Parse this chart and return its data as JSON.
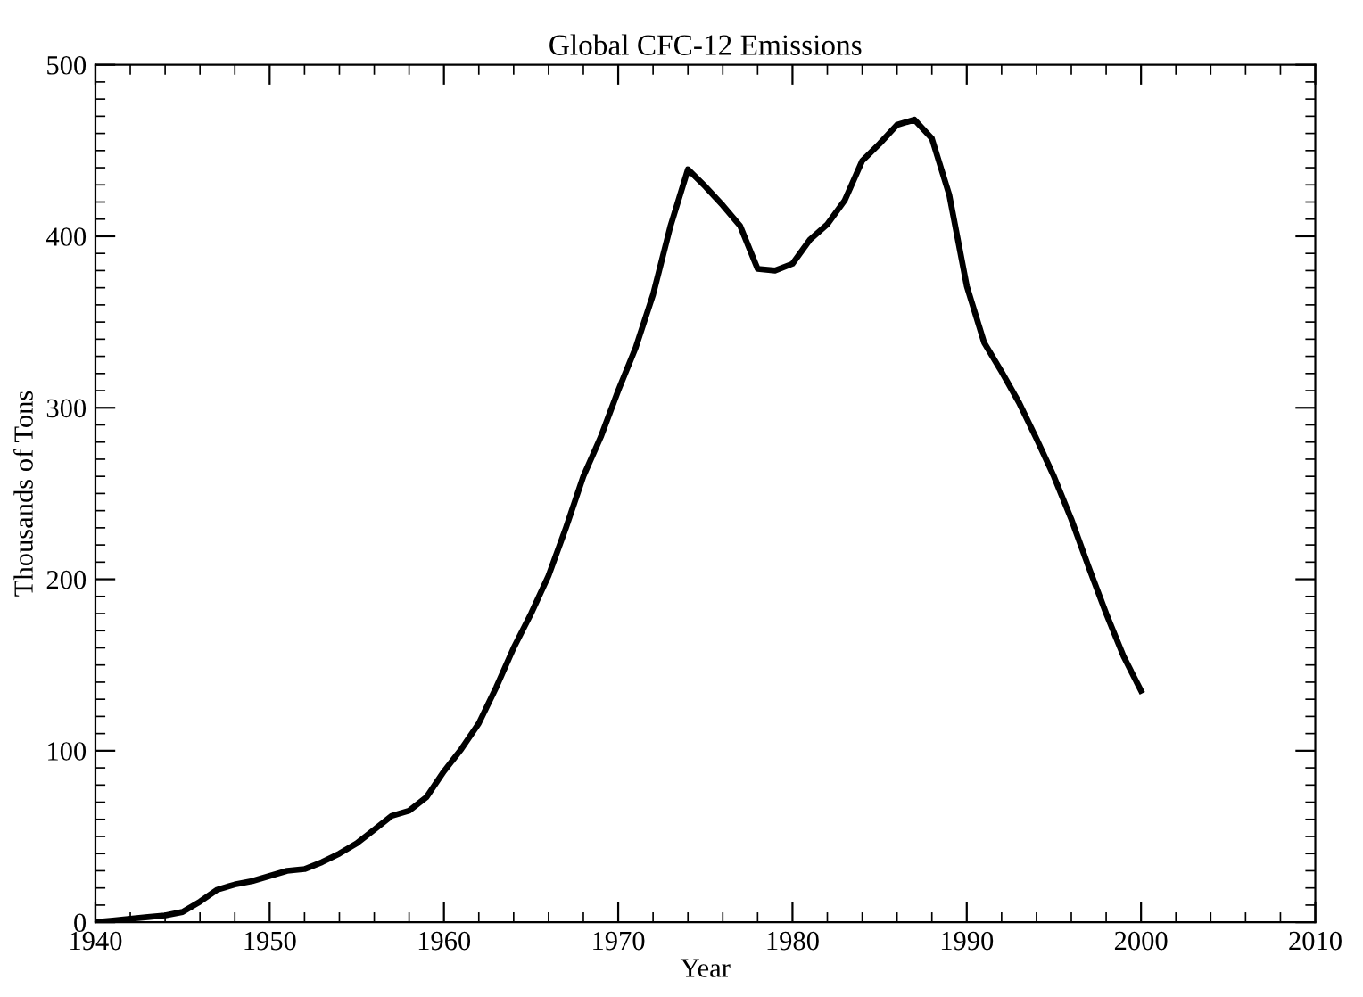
{
  "chart_data": {
    "type": "line",
    "title": "Global CFC-12 Emissions",
    "xlabel": "Year",
    "ylabel": "Thousands of Tons",
    "x": [
      1940,
      1941,
      1942,
      1943,
      1944,
      1945,
      1946,
      1947,
      1948,
      1949,
      1950,
      1951,
      1952,
      1953,
      1954,
      1955,
      1956,
      1957,
      1958,
      1959,
      1960,
      1961,
      1962,
      1963,
      1964,
      1965,
      1966,
      1967,
      1968,
      1969,
      1970,
      1971,
      1972,
      1973,
      1974,
      1975,
      1976,
      1977,
      1978,
      1979,
      1980,
      1981,
      1982,
      1983,
      1984,
      1985,
      1986,
      1987,
      1988,
      1989,
      1990,
      1991,
      1992,
      1993,
      1994,
      1995,
      1996,
      1997,
      1998,
      1999,
      2000
    ],
    "series": [
      {
        "color": "#000000",
        "values": [
          0,
          1,
          2,
          3,
          4,
          6,
          12,
          19,
          22,
          24,
          27,
          30,
          31,
          35,
          40,
          46,
          54,
          62,
          65,
          73,
          88,
          101,
          116,
          137,
          160,
          180,
          202,
          230,
          260,
          283,
          310,
          335,
          366,
          406,
          439,
          429,
          418,
          406,
          381,
          380,
          384,
          398,
          407,
          421,
          444,
          454,
          465,
          468,
          457,
          424,
          371,
          338,
          321,
          303,
          282,
          260,
          235,
          207,
          180,
          155,
          135
        ]
      }
    ],
    "xlim": [
      1940,
      2010
    ],
    "xticks": [
      1940,
      1950,
      1960,
      1970,
      1980,
      1990,
      2000,
      2010
    ],
    "ylim": [
      0,
      500
    ],
    "yticks": [
      0,
      100,
      200,
      300,
      400,
      500
    ],
    "grid": false,
    "marker": "none",
    "line_style": "solid"
  }
}
